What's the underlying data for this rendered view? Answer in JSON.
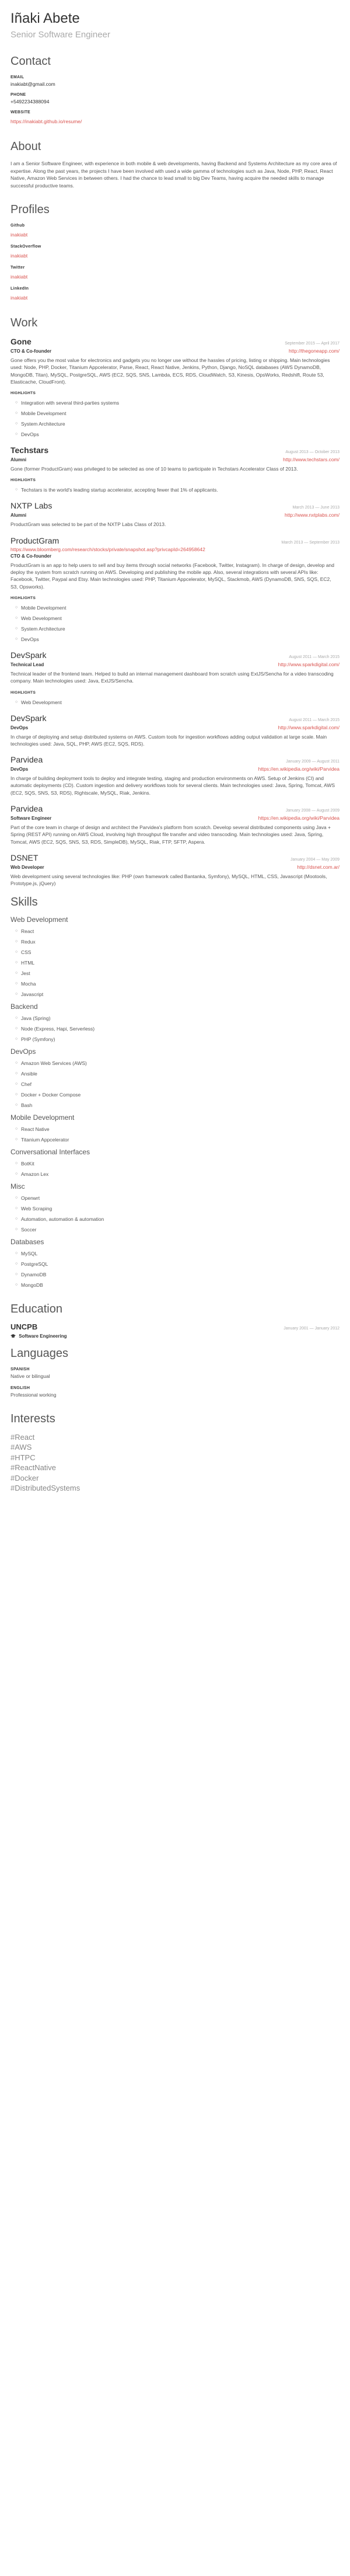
{
  "basics": {
    "name": "Iñaki Abete",
    "label": "Senior Software Engineer"
  },
  "contact": {
    "title": "Contact",
    "email_label": "EMAIL",
    "email": "inakiabt@gmail.com",
    "phone_label": "PHONE",
    "phone": "+5492234388094",
    "website_label": "WEBSITE",
    "website": "https://inakiabt.github.io/resume/"
  },
  "about": {
    "title": "About",
    "summary": "I am a Senior Software Engineer, with experience in both mobile & web developments, having Backend and Systems Architecture as my core area of expertise. Along the past years, the projects I have been involved with used a wide gamma of technologies such as Java, Node, PHP, React, React Native, Amazon Web Services in between others. I had the chance to lead small to big Dev Teams, having acquire the needed skills to manage successful productive teams."
  },
  "profiles": {
    "title": "Profiles",
    "items": [
      {
        "network": "Github",
        "username": "inakiabt"
      },
      {
        "network": "StackOverflow",
        "username": "inakiabt"
      },
      {
        "network": "Twitter",
        "username": "inakiabt"
      },
      {
        "network": "LinkedIn",
        "username": "inakiabt"
      }
    ]
  },
  "work": {
    "title": "Work",
    "highlights_label": "HIGHLIGHTS",
    "jobs": [
      {
        "company": "Gone",
        "dates": "September 2015 — April 2017",
        "position": "CTO & Co-founder",
        "url": "http://thegoneapp.com/",
        "summary": "Gone offers you the most value for electronics and gadgets you no longer use without the hassles of pricing, listing or shipping. Main technologies used: Node, PHP, Docker, Titanium Appcelerator, Parse, React, React Native, Jenkins, Python, Django, NoSQL databases (AWS DynamoDB, MongoDB, Titan), MySQL, PostgreSQL, AWS (EC2, SQS, SNS, Lambda, ECS, RDS, CloudWatch, S3, Kinesis, OpsWorks, Redshift, Route 53, Elasticache, CloudFront).",
        "highlights": [
          "Integration with several third-parties systems",
          "Mobile Development",
          "System Architecture",
          "DevOps"
        ]
      },
      {
        "company": "Techstars",
        "dates": "August 2013 — October 2013",
        "position": "Alumni",
        "url": "http://www.techstars.com/",
        "summary": "Gone (former ProductGram) was privileged to be selected as one of 10 teams to participate in Techstars Accelerator Class of 2013.",
        "highlights": [
          "Techstars is the world's leading startup accelerator, accepting fewer that 1% of applicants."
        ]
      },
      {
        "company": "NXTP Labs",
        "dates": "March 2013 — June 2013",
        "position": "Alumni",
        "url": "http://www.nxtplabs.com/",
        "summary": "ProductGram was selected to be part of the NXTP Labs Class of 2013.",
        "highlights": []
      },
      {
        "company": "ProductGram",
        "dates": "March 2013 — September 2013",
        "position": "CTO & Co-founder",
        "url": "https://www.bloomberg.com/research/stocks/private/snapshot.asp?privcapId=264958642",
        "summary": "ProductGram is an app to help users to sell and buy items through social networks (Facebook, Twitter, Instagram). In charge of design, develop and deploy the system from scratch running on AWS. Developing and publishing the mobile app. Also, several integrations with several APIs like: Facebook, Twitter, Paypal and Etsy. Main technologies used: PHP, Titanium Appcelerator, MySQL, Stackmob, AWS (DynamoDB, SNS, SQS, EC2, S3, Opsworks).",
        "highlights": [
          "Mobile Development",
          "Web Development",
          "System Architecture",
          "DevOps"
        ]
      },
      {
        "company": "DevSpark",
        "dates": "August 2011 — March 2015",
        "position": "Technical Lead",
        "url": "http://www.sparkdigital.com/",
        "summary": "Technical leader of the frontend team. Helped to build an internal management dashboard from scratch using ExtJS/Sencha for a video transcoding company. Main technologies used: Java, ExtJS/Sencha.",
        "highlights": [
          "Web Development"
        ]
      },
      {
        "company": "DevSpark",
        "dates": "August 2011 — March 2015",
        "position": "DevOps",
        "url": "http://www.sparkdigital.com/",
        "summary": "In charge of deploying and setup distributed systems on AWS. Custom tools for ingestion workflows adding output validation at large scale. Main technologies used: Java, SQL, PHP, AWS (EC2, SQS, RDS).",
        "highlights": []
      },
      {
        "company": "Parvidea",
        "dates": "January 2009 — August 2011",
        "position": "DevOps",
        "url": "https://en.wikipedia.org/wiki/Parvidea",
        "summary": "In charge of building deployment tools to deploy and integrate testing, staging and production environments on AWS. Setup of Jenkins (CI) and automatic deployments (CD). Custom ingestion and delivery workflows tools for several clients. Main technologies used: Java, Spring, Tomcat, AWS (EC2, SQS, SNS, S3, RDS), Rightscale, MySQL, Riak, Jenkins.",
        "highlights": []
      },
      {
        "company": "Parvidea",
        "dates": "January 2008 — August 2009",
        "position": "Software Engineer",
        "url": "https://en.wikipedia.org/wiki/Parvidea",
        "summary": "Part of the core team in charge of design and architect the Parvidea's platform from scratch. Develop several distributed components using Java + Spring (REST API) running on AWS Cloud, involving high throughput file transfer and video transcoding. Main technologies used: Java, Spring, Tomcat, AWS (EC2, SQS, SNS, S3, RDS, SimpleDB), MySQL, Riak, FTP, SFTP, Aspera.",
        "highlights": []
      },
      {
        "company": "DSNET",
        "dates": "January 2004 — May 2009",
        "position": "Web Developer",
        "url": "http://dsnet.com.ar/",
        "summary": "Web development using several technologies like: PHP (own framework called Bantanka, Symfony), MySQL, HTML, CSS, Javascript (Mootools, Prototype.js, jQuery)",
        "highlights": []
      }
    ]
  },
  "skills": {
    "title": "Skills",
    "groups": [
      {
        "name": "Web Development",
        "keywords": [
          "React",
          "Redux",
          "CSS",
          "HTML",
          "Jest",
          "Mocha",
          "Javascript"
        ]
      },
      {
        "name": "Backend",
        "keywords": [
          "Java (Spring)",
          "Node (Express, Hapi, Serverless)",
          "PHP (Symfony)"
        ]
      },
      {
        "name": "DevOps",
        "keywords": [
          "Amazon Web Services (AWS)",
          "Ansible",
          "Chef",
          "Docker + Docker Compose",
          "Bash"
        ]
      },
      {
        "name": "Mobile Development",
        "keywords": [
          "React Native",
          "Titanium Appcelerator"
        ]
      },
      {
        "name": "Conversational Interfaces",
        "keywords": [
          "BotKit",
          "Amazon Lex"
        ]
      },
      {
        "name": "Misc",
        "keywords": [
          "Openwrt",
          "Web Scraping",
          "Automation, automation & automation",
          "Soccer"
        ]
      },
      {
        "name": "Databases",
        "keywords": [
          "MySQL",
          "PostgreSQL",
          "DynamoDB",
          "MongoDB"
        ]
      }
    ]
  },
  "education": {
    "title": "Education",
    "items": [
      {
        "institution": "UNCPB",
        "dates": "January 2001 — January 2012",
        "area": "Software Engineering"
      }
    ]
  },
  "languages": {
    "title": "Languages",
    "items": [
      {
        "language": "SPANISH",
        "fluency": "Native or bilingual"
      },
      {
        "language": "ENGLISH",
        "fluency": "Professional working"
      }
    ]
  },
  "interests": {
    "title": "Interests",
    "items": [
      "#React",
      "#AWS",
      "#HTPC",
      "#ReactNative",
      "#Docker",
      "#DistributedSystems"
    ]
  }
}
